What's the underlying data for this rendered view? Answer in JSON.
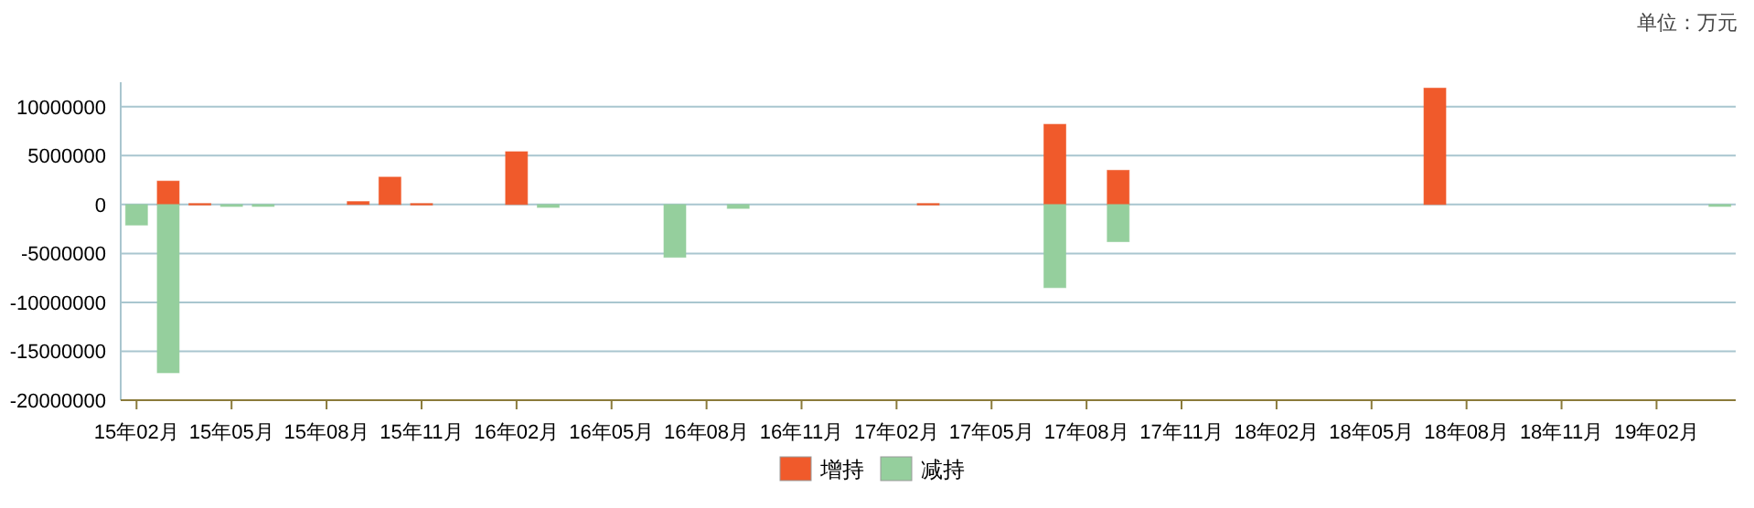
{
  "chart_data": {
    "type": "bar",
    "annotations": [
      "单位：万元"
    ],
    "categories": [
      "15年02月",
      null,
      null,
      "15年05月",
      null,
      null,
      "15年08月",
      null,
      null,
      "15年11月",
      null,
      null,
      "16年02月",
      null,
      null,
      "16年05月",
      null,
      null,
      "16年08月",
      null,
      null,
      "16年11月",
      null,
      null,
      "17年02月",
      null,
      null,
      "17年05月",
      null,
      null,
      "17年08月",
      null,
      null,
      "17年11月",
      null,
      null,
      "18年02月",
      null,
      null,
      "18年05月",
      null,
      null,
      "18年08月",
      null,
      null,
      "18年11月",
      null,
      null,
      "19年02月",
      null,
      null
    ],
    "series": [
      {
        "name": "增持",
        "color": "#f05a2b",
        "values": [
          null,
          2400000,
          100000,
          null,
          null,
          null,
          null,
          300000,
          2800000,
          100000,
          null,
          null,
          5400000,
          null,
          null,
          null,
          null,
          null,
          null,
          null,
          null,
          null,
          null,
          null,
          null,
          100000,
          null,
          null,
          null,
          8200000,
          null,
          3500000,
          null,
          null,
          null,
          null,
          null,
          null,
          null,
          null,
          null,
          11900000,
          null,
          null,
          null,
          null,
          null,
          null,
          null,
          null,
          null
        ]
      },
      {
        "name": "减持",
        "color": "#95cf9d",
        "values": [
          -2100000,
          -17200000,
          null,
          -200000,
          -200000,
          null,
          null,
          null,
          null,
          null,
          null,
          null,
          null,
          -300000,
          null,
          null,
          null,
          -5400000,
          null,
          -400000,
          null,
          null,
          null,
          null,
          null,
          null,
          null,
          null,
          null,
          -8500000,
          null,
          -3800000,
          null,
          null,
          null,
          null,
          null,
          null,
          null,
          null,
          null,
          null,
          null,
          null,
          null,
          null,
          null,
          null,
          null,
          null,
          -200000
        ]
      }
    ],
    "ylim": [
      -20000000,
      12500000
    ],
    "yticks": [
      -20000000,
      -15000000,
      -10000000,
      -5000000,
      0,
      5000000,
      10000000
    ],
    "grid": "y",
    "legend": "bottom"
  }
}
